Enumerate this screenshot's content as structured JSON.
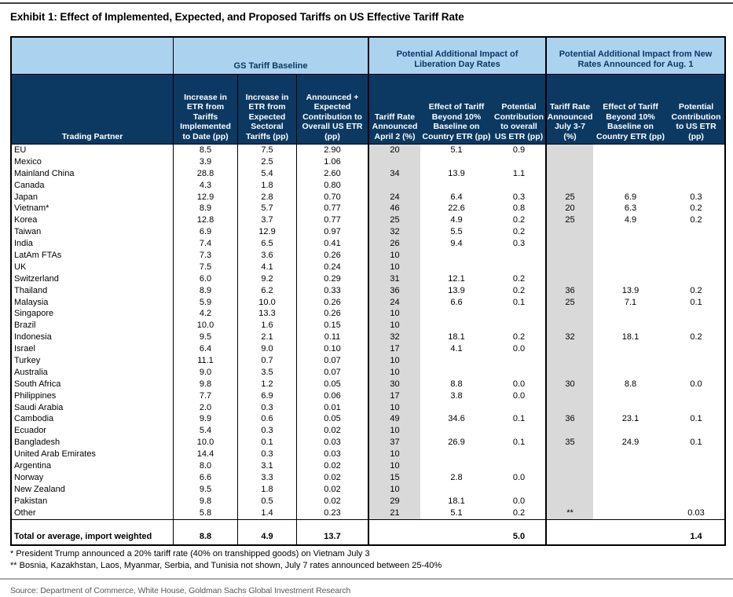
{
  "title": "Exhibit 1: Effect of Implemented, Expected, and Proposed Tariffs on US Effective Tariff Rate",
  "table": {
    "groups": [
      {
        "label": "GS Tariff Baseline"
      },
      {
        "label": "Potential Additional Impact of Liberation Day Rates"
      },
      {
        "label": "Potential Additional Impact from New Rates Announced for Aug. 1"
      }
    ],
    "columns": [
      "Trading Partner",
      "Increase in ETR from Tariffs Implemented to Date (pp)",
      "Increase in ETR from Expected Sectoral Tariffs (pp)",
      "Announced + Expected Contribution to Overall US ETR (pp)",
      "Tariff Rate Announced April 2 (%)",
      "Effect of Tariff Beyond 10% Baseline on Country ETR (pp)",
      "Potential Contribution to overall US ETR (pp)",
      "Tariff Rate Announced July 3-7 (%)",
      "Effect of Tariff Beyond 10% Baseline on Country ETR (pp)",
      "Potential Contribution to US ETR (pp)"
    ],
    "rows": [
      [
        "EU",
        "8.5",
        "7.5",
        "2.90",
        "20",
        "5.1",
        "0.9",
        "",
        "",
        ""
      ],
      [
        "Mexico",
        "3.9",
        "2.5",
        "1.06",
        "",
        "",
        "",
        "",
        "",
        ""
      ],
      [
        "Mainland China",
        "28.8",
        "5.4",
        "2.60",
        "34",
        "13.9",
        "1.1",
        "",
        "",
        ""
      ],
      [
        "Canada",
        "4.3",
        "1.8",
        "0.80",
        "",
        "",
        "",
        "",
        "",
        ""
      ],
      [
        "Japan",
        "12.9",
        "2.8",
        "0.70",
        "24",
        "6.4",
        "0.3",
        "25",
        "6.9",
        "0.3"
      ],
      [
        "Vietnam*",
        "8.9",
        "5.7",
        "0.77",
        "46",
        "22.6",
        "0.8",
        "20",
        "6.3",
        "0.2"
      ],
      [
        "Korea",
        "12.8",
        "3.7",
        "0.77",
        "25",
        "4.9",
        "0.2",
        "25",
        "4.9",
        "0.2"
      ],
      [
        "Taiwan",
        "6.9",
        "12.9",
        "0.97",
        "32",
        "5.5",
        "0.2",
        "",
        "",
        ""
      ],
      [
        "India",
        "7.4",
        "6.5",
        "0.41",
        "26",
        "9.4",
        "0.3",
        "",
        "",
        ""
      ],
      [
        "LatAm FTAs",
        "7.3",
        "3.6",
        "0.26",
        "10",
        "",
        "",
        "",
        "",
        ""
      ],
      [
        "UK",
        "7.5",
        "4.1",
        "0.24",
        "10",
        "",
        "",
        "",
        "",
        ""
      ],
      [
        "Switzerland",
        "6.0",
        "9.2",
        "0.29",
        "31",
        "12.1",
        "0.2",
        "",
        "",
        ""
      ],
      [
        "Thailand",
        "8.9",
        "6.2",
        "0.33",
        "36",
        "13.9",
        "0.2",
        "36",
        "13.9",
        "0.2"
      ],
      [
        "Malaysia",
        "5.9",
        "10.0",
        "0.26",
        "24",
        "6.6",
        "0.1",
        "25",
        "7.1",
        "0.1"
      ],
      [
        "Singapore",
        "4.2",
        "13.3",
        "0.26",
        "10",
        "",
        "",
        "",
        "",
        ""
      ],
      [
        "Brazil",
        "10.0",
        "1.6",
        "0.15",
        "10",
        "",
        "",
        "",
        "",
        ""
      ],
      [
        "Indonesia",
        "9.5",
        "2.1",
        "0.11",
        "32",
        "18.1",
        "0.2",
        "32",
        "18.1",
        "0.2"
      ],
      [
        "Israel",
        "6.4",
        "9.0",
        "0.10",
        "17",
        "4.1",
        "0.0",
        "",
        "",
        ""
      ],
      [
        "Turkey",
        "11.1",
        "0.7",
        "0.07",
        "10",
        "",
        "",
        "",
        "",
        ""
      ],
      [
        "Australia",
        "9.0",
        "3.5",
        "0.07",
        "10",
        "",
        "",
        "",
        "",
        ""
      ],
      [
        "South Africa",
        "9.8",
        "1.2",
        "0.05",
        "30",
        "8.8",
        "0.0",
        "30",
        "8.8",
        "0.0"
      ],
      [
        "Philippines",
        "7.7",
        "6.9",
        "0.06",
        "17",
        "3.8",
        "0.0",
        "",
        "",
        ""
      ],
      [
        "Saudi Arabia",
        "2.0",
        "0.3",
        "0.01",
        "10",
        "",
        "",
        "",
        "",
        ""
      ],
      [
        "Cambodia",
        "9.9",
        "0.6",
        "0.05",
        "49",
        "34.6",
        "0.1",
        "36",
        "23.1",
        "0.1"
      ],
      [
        "Ecuador",
        "5.4",
        "0.3",
        "0.02",
        "10",
        "",
        "",
        "",
        "",
        ""
      ],
      [
        "Bangladesh",
        "10.0",
        "0.1",
        "0.03",
        "37",
        "26.9",
        "0.1",
        "35",
        "24.9",
        "0.1"
      ],
      [
        "United Arab Emirates",
        "14.4",
        "0.3",
        "0.03",
        "10",
        "",
        "",
        "",
        "",
        ""
      ],
      [
        "Argentina",
        "8.0",
        "3.1",
        "0.02",
        "10",
        "",
        "",
        "",
        "",
        ""
      ],
      [
        "Norway",
        "6.6",
        "3.3",
        "0.02",
        "15",
        "2.8",
        "0.0",
        "",
        "",
        ""
      ],
      [
        "New Zealand",
        "9.5",
        "1.8",
        "0.02",
        "10",
        "",
        "",
        "",
        "",
        ""
      ],
      [
        "Pakistan",
        "9.8",
        "0.5",
        "0.02",
        "29",
        "18.1",
        "0.0",
        "",
        "",
        ""
      ],
      [
        "Other",
        "5.8",
        "1.4",
        "0.23",
        "21",
        "5.1",
        "0.2",
        "**",
        "",
        "0.03"
      ]
    ],
    "total_row": [
      "Total or average, import weighted",
      "8.8",
      "4.9",
      "13.7",
      "",
      "",
      "5.0",
      "",
      "",
      "1.4"
    ]
  },
  "footnotes": [
    "* President Trump announced a 20% tariff rate (40% on transhipped goods) on Vietnam July 3",
    "** Bosnia, Kazakhstan, Laos, Myanmar, Serbia, and Tunisia not shown, July 7 rates announced between 25-40%"
  ],
  "source": "Source: Department of Commerce, White House, Goldman Sachs Global Investment Research",
  "colors": {
    "header_navy": "#0b3962",
    "header_light_blue": "#abd2ef",
    "gray_column": "#d9d9d9"
  }
}
